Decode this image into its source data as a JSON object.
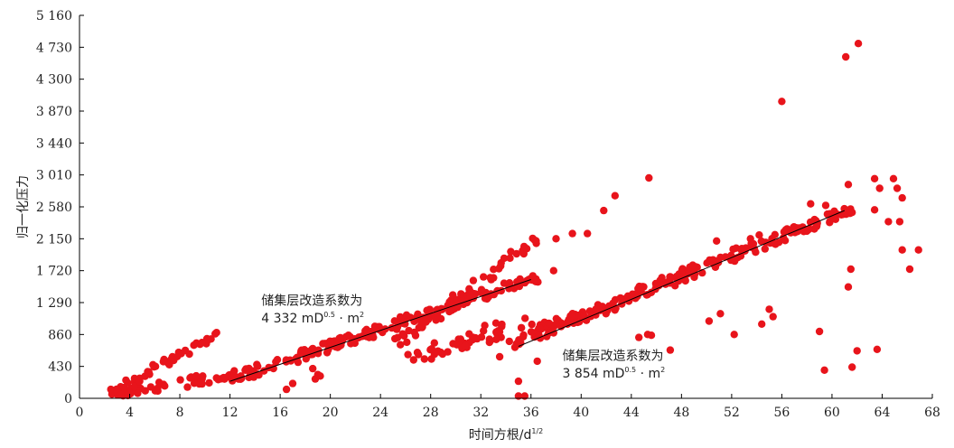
{
  "chart_data": {
    "type": "scatter",
    "title": "",
    "xlabel": "时间方根/d",
    "xlabel_sup": "1/2",
    "ylabel": "归一化压力",
    "xlim": [
      0,
      68
    ],
    "ylim": [
      0,
      5160
    ],
    "xticks": [
      0,
      4,
      8,
      12,
      16,
      20,
      24,
      28,
      32,
      36,
      40,
      44,
      48,
      52,
      56,
      60,
      64,
      68
    ],
    "yticks": [
      0,
      430,
      860,
      1290,
      1720,
      2150,
      2580,
      3010,
      3440,
      3870,
      4300,
      4730,
      5160
    ],
    "ytick_labels": [
      "0",
      "430",
      "860",
      "1 290",
      "1 720",
      "2 150",
      "2 580",
      "3 010",
      "3 440",
      "3 870",
      "4 300",
      "4 730",
      "5 160"
    ],
    "marker_color": "#e8141b",
    "line_color": "#000000",
    "grid": false,
    "fit_lines": [
      {
        "x": [
          12,
          36
        ],
        "y": [
          230,
          1600
        ]
      },
      {
        "x": [
          35,
          61
        ],
        "y": [
          700,
          2530
        ]
      }
    ],
    "annotations": [
      {
        "line1": "储集层改造系数为",
        "value": "4 332 mD",
        "sup": "0.5",
        "tail": " · m",
        "tail_sup": "2",
        "x": 14.5,
        "y1": 1260,
        "y2": 1020
      },
      {
        "line1": "储集层改造系数为",
        "value": "3 854 mD",
        "sup": "0.5",
        "tail": " · m",
        "tail_sup": "2",
        "x": 38.5,
        "y1": 520,
        "y2": 280
      }
    ],
    "scatter_clusters": [
      {
        "x0": 2.4,
        "x1": 11,
        "y0": 60,
        "y1": 860,
        "n": 45,
        "jitter": 60
      },
      {
        "x0": 3,
        "x1": 12.5,
        "y0": 70,
        "y1": 320,
        "n": 50,
        "jitter": 70
      },
      {
        "x0": 12,
        "x1": 36.5,
        "y0": 260,
        "y1": 1640,
        "n": 190,
        "jitter": 70
      },
      {
        "x0": 24,
        "x1": 36.5,
        "y0": 580,
        "y1": 2150,
        "n": 60,
        "jitter": 80
      },
      {
        "x0": 26,
        "x1": 36,
        "y0": 540,
        "y1": 1050,
        "n": 30,
        "jitter": 120
      },
      {
        "x0": 34,
        "x1": 61.5,
        "y0": 700,
        "y1": 2550,
        "n": 220,
        "jitter": 80
      },
      {
        "x0": 28,
        "x1": 40,
        "y0": 620,
        "y1": 1120,
        "n": 35,
        "jitter": 60
      }
    ],
    "scatter_points": [
      [
        2.5,
        120
      ],
      [
        3.0,
        90
      ],
      [
        3.3,
        50
      ],
      [
        4.8,
        230
      ],
      [
        16.5,
        120
      ],
      [
        17,
        200
      ],
      [
        18.6,
        400
      ],
      [
        19.0,
        320
      ],
      [
        18.8,
        260
      ],
      [
        19.2,
        300
      ],
      [
        33.5,
        560
      ],
      [
        35,
        30
      ],
      [
        35.5,
        30
      ],
      [
        35,
        230
      ],
      [
        36.5,
        500
      ],
      [
        37.8,
        1720
      ],
      [
        38,
        2150
      ],
      [
        39.3,
        2220
      ],
      [
        40.5,
        2220
      ],
      [
        41.8,
        2530
      ],
      [
        42.7,
        2730
      ],
      [
        45.4,
        2970
      ],
      [
        44.6,
        820
      ],
      [
        45.3,
        860
      ],
      [
        45.6,
        850
      ],
      [
        47.1,
        650
      ],
      [
        50.8,
        2120
      ],
      [
        50.2,
        1040
      ],
      [
        51.1,
        1140
      ],
      [
        54.4,
        1000
      ],
      [
        56.0,
        4000
      ],
      [
        58.3,
        2620
      ],
      [
        59.5,
        2600
      ],
      [
        59.0,
        900
      ],
      [
        59.4,
        380
      ],
      [
        61.1,
        4600
      ],
      [
        62.1,
        4780
      ],
      [
        61.3,
        2880
      ],
      [
        61.5,
        1740
      ],
      [
        61.3,
        1500
      ],
      [
        61.6,
        420
      ],
      [
        62.0,
        640
      ],
      [
        63.4,
        2960
      ],
      [
        63.8,
        2830
      ],
      [
        63.4,
        2540
      ],
      [
        63.6,
        660
      ],
      [
        64.5,
        2380
      ],
      [
        64.9,
        2960
      ],
      [
        65.2,
        2830
      ],
      [
        65.4,
        2380
      ],
      [
        65.6,
        2700
      ],
      [
        65.6,
        2000
      ],
      [
        66.2,
        1740
      ],
      [
        66.9,
        2000
      ],
      [
        55.0,
        1200
      ],
      [
        55.3,
        1100
      ],
      [
        53.5,
        2150
      ],
      [
        54.2,
        2200
      ],
      [
        52.2,
        860
      ],
      [
        50.8,
        1850
      ]
    ]
  }
}
